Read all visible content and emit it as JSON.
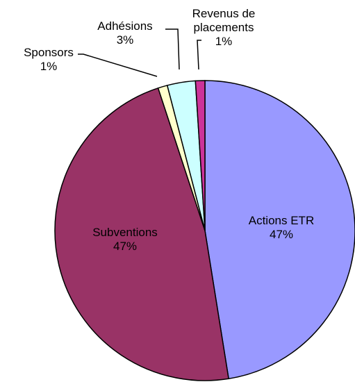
{
  "chart_data": {
    "type": "pie",
    "categories": [
      "Actions ETR",
      "Subventions",
      "Sponsors",
      "Adhésions",
      "Revenus de placements"
    ],
    "values": [
      47,
      47,
      1,
      3,
      1
    ],
    "value_labels": [
      "47%",
      "47%",
      "1%",
      "3%",
      "1%"
    ],
    "colors": [
      "#9999ff",
      "#993366",
      "#ffffcc",
      "#ccffff",
      "#cc3399"
    ]
  }
}
